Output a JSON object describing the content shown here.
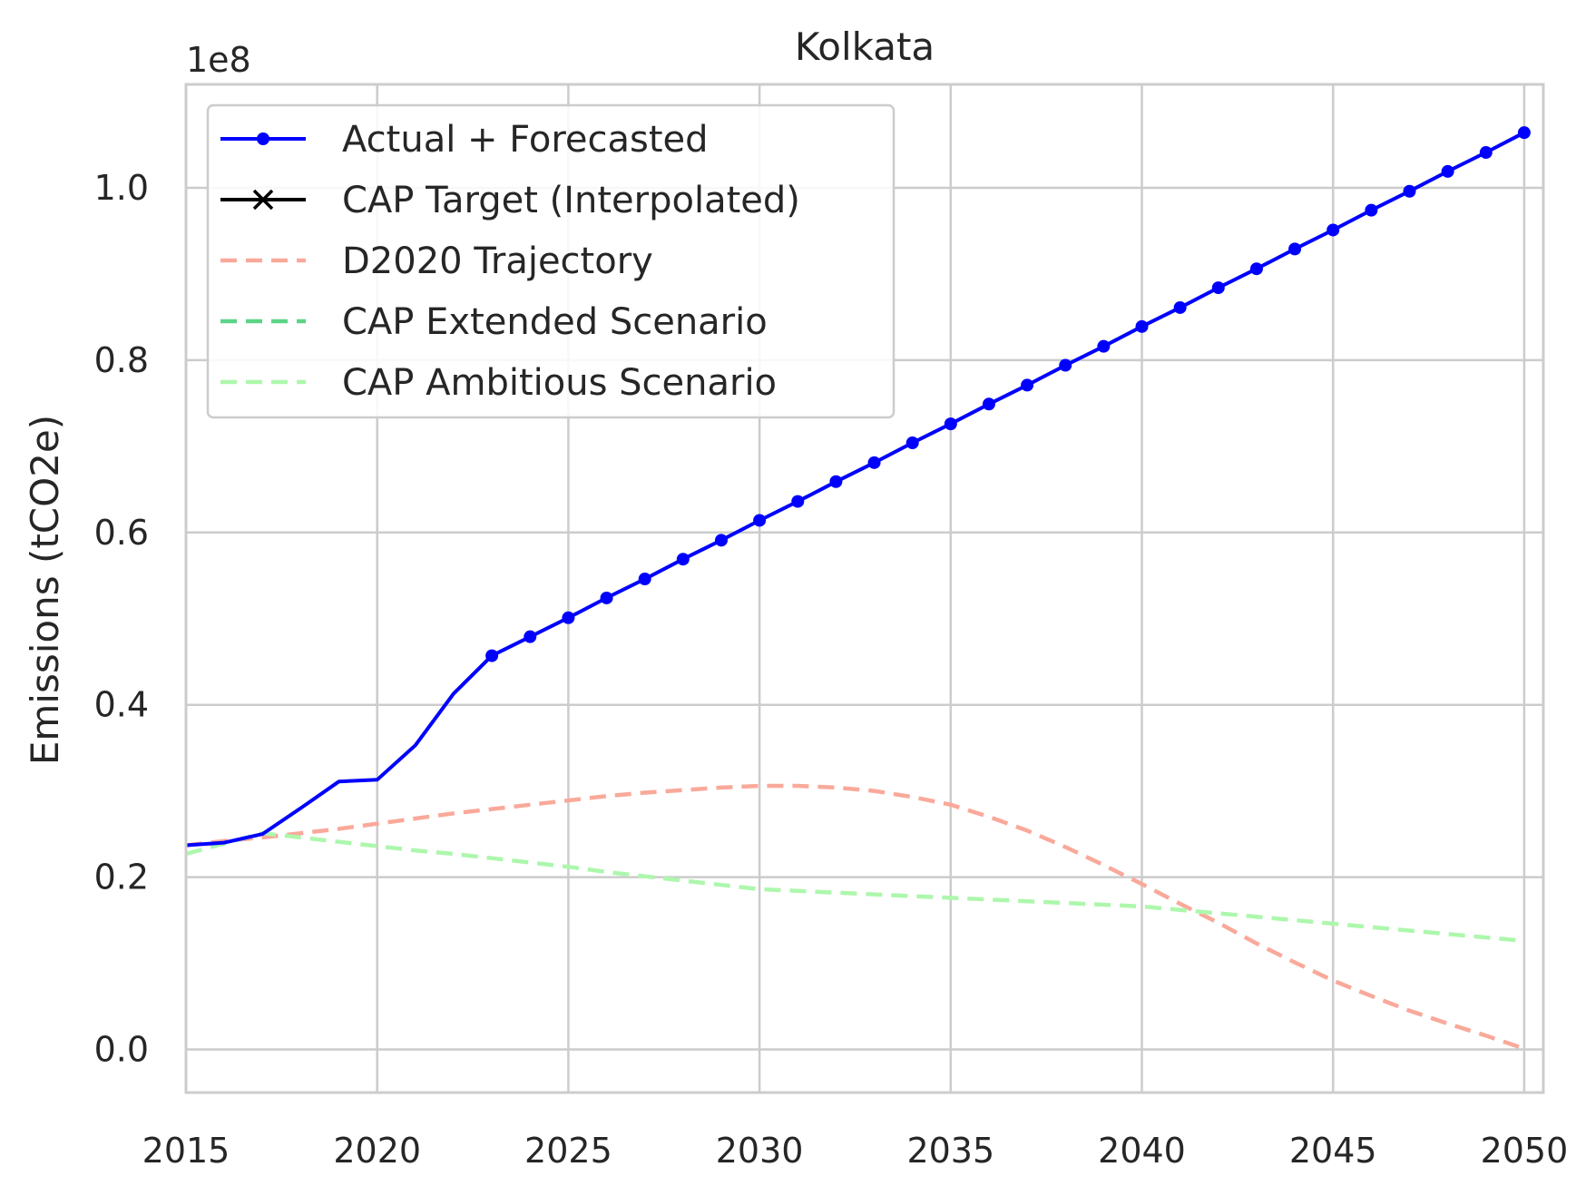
{
  "chart_data": {
    "type": "line",
    "title": "Kolkata",
    "xlabel": "",
    "ylabel": "Emissions (tCO2e)",
    "y_offset_label": "1e8",
    "y_scale_factor": 100000000,
    "xlim": [
      2015,
      2050.5
    ],
    "ylim": [
      -0.05,
      1.12
    ],
    "x_ticks": [
      2015,
      2020,
      2025,
      2030,
      2035,
      2040,
      2045,
      2050
    ],
    "x_tick_labels": [
      "2015",
      "2020",
      "2025",
      "2030",
      "2035",
      "2040",
      "2045",
      "2050"
    ],
    "y_ticks": [
      0.0,
      0.2,
      0.4,
      0.6,
      0.8,
      1.0
    ],
    "y_tick_labels": [
      "0.0",
      "0.2",
      "0.4",
      "0.6",
      "0.8",
      "1.0"
    ],
    "grid": true,
    "legend_position": "top-left",
    "series": [
      {
        "name": "Actual + Forecasted",
        "color": "#0000ff",
        "style": "solid",
        "marker": "circle",
        "x": [
          2015,
          2016,
          2017,
          2018,
          2019,
          2020,
          2021,
          2022,
          2023,
          2024,
          2025,
          2026,
          2027,
          2028,
          2029,
          2030,
          2031,
          2032,
          2033,
          2034,
          2035,
          2036,
          2037,
          2038,
          2039,
          2040,
          2041,
          2042,
          2043,
          2044,
          2045,
          2046,
          2047,
          2048,
          2049,
          2050
        ],
        "values": [
          0.237,
          0.24,
          0.25,
          0.28,
          0.311,
          0.313,
          0.353,
          0.413,
          0.457,
          0.479,
          0.501,
          0.524,
          0.546,
          0.569,
          0.591,
          0.614,
          0.636,
          0.659,
          0.681,
          0.704,
          0.726,
          0.749,
          0.771,
          0.794,
          0.816,
          0.839,
          0.861,
          0.884,
          0.906,
          0.929,
          0.951,
          0.974,
          0.996,
          1.019,
          1.041,
          1.064
        ],
        "marker_from": 2023
      },
      {
        "name": "CAP Target (Interpolated)",
        "color": "#000000",
        "style": "solid",
        "marker": "x",
        "x": [],
        "values": []
      },
      {
        "name": "D2020 Trajectory",
        "color": "#f9a99a",
        "style": "dashed",
        "marker": "none",
        "x": [
          2015,
          2016,
          2017,
          2018,
          2019,
          2020,
          2021,
          2022,
          2023,
          2024,
          2025,
          2026,
          2027,
          2028,
          2029,
          2030,
          2031,
          2032,
          2033,
          2034,
          2035,
          2036,
          2037,
          2038,
          2039,
          2040,
          2041,
          2042,
          2043,
          2044,
          2045,
          2046,
          2047,
          2048,
          2049,
          2050
        ],
        "values": [
          0.237,
          0.242,
          0.246,
          0.251,
          0.256,
          0.262,
          0.268,
          0.274,
          0.279,
          0.284,
          0.289,
          0.294,
          0.298,
          0.301,
          0.304,
          0.306,
          0.306,
          0.304,
          0.3,
          0.293,
          0.284,
          0.27,
          0.254,
          0.235,
          0.214,
          0.192,
          0.169,
          0.147,
          0.123,
          0.101,
          0.08,
          0.062,
          0.045,
          0.03,
          0.016,
          0.001
        ]
      },
      {
        "name": "CAP Extended Scenario",
        "color": "#5dd487",
        "style": "dashed",
        "marker": "none",
        "x": [],
        "values": []
      },
      {
        "name": "CAP Ambitious Scenario",
        "color": "#adf7ad",
        "style": "dashed",
        "marker": "none",
        "x": [
          2015,
          2016,
          2017,
          2018,
          2019,
          2020,
          2021,
          2022,
          2023,
          2024,
          2025,
          2026,
          2027,
          2028,
          2029,
          2030,
          2031,
          2032,
          2033,
          2034,
          2035,
          2036,
          2037,
          2038,
          2039,
          2040,
          2041,
          2042,
          2043,
          2044,
          2045,
          2046,
          2047,
          2048,
          2049,
          2050
        ],
        "values": [
          0.227,
          0.239,
          0.251,
          0.246,
          0.241,
          0.236,
          0.231,
          0.227,
          0.222,
          0.217,
          0.212,
          0.206,
          0.201,
          0.196,
          0.191,
          0.186,
          0.184,
          0.182,
          0.18,
          0.178,
          0.176,
          0.174,
          0.172,
          0.17,
          0.168,
          0.166,
          0.162,
          0.158,
          0.154,
          0.15,
          0.146,
          0.142,
          0.138,
          0.134,
          0.13,
          0.126
        ]
      }
    ]
  }
}
